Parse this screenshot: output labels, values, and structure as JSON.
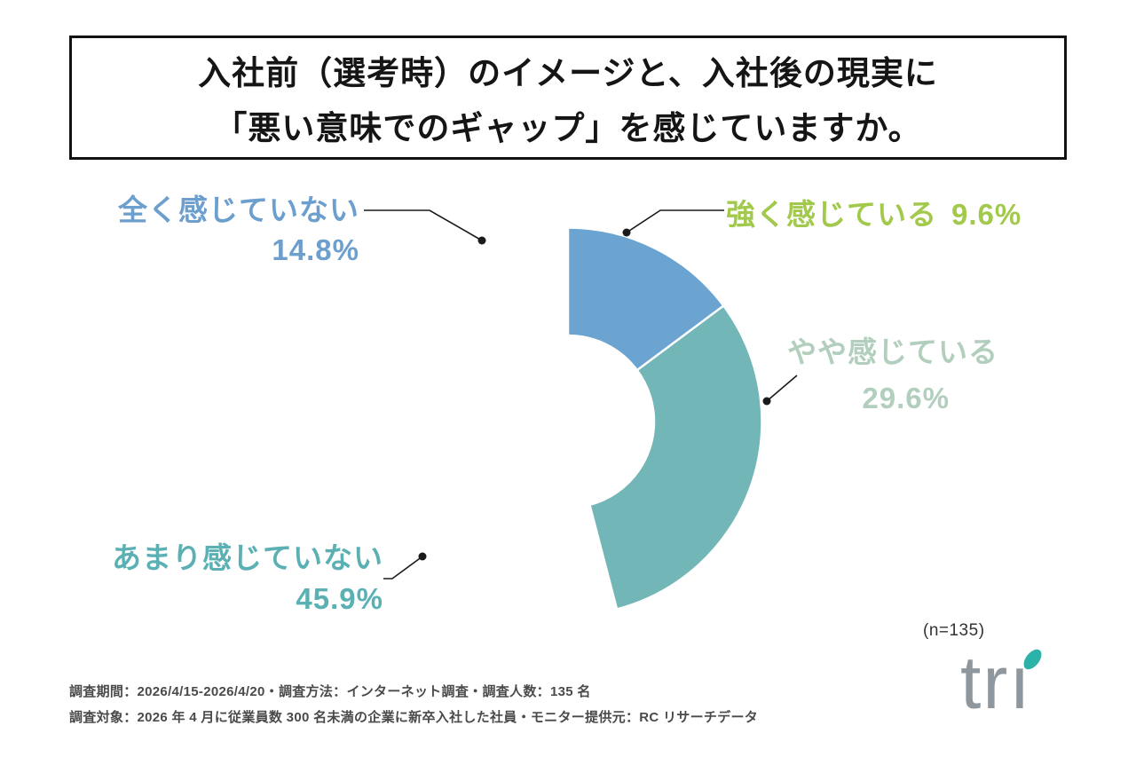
{
  "title": {
    "line1": "入社前（選考時）のイメージと、入社後の現実に",
    "line2": "「悪い意味でのギャップ」を感じていますか。"
  },
  "chart_data": {
    "type": "pie",
    "donut": true,
    "title": "入社前（選考時）のイメージと、入社後の現実に「悪い意味でのギャップ」を感じていますか。",
    "start_angle_deg": 0,
    "direction": "clockwise",
    "legend_position": "callout-labels",
    "sample_label": "(n=135)",
    "sample_n": 135,
    "segments": [
      {
        "label": "強く感じている",
        "value": 9.6,
        "pct_label": "9.6%",
        "color": "#a6cb58",
        "text_color": "#a2c94c"
      },
      {
        "label": "やや感じている",
        "value": 29.6,
        "pct_label": "29.6%",
        "color": "#bad3c4",
        "text_color": "#b2cebd"
      },
      {
        "label": "あまり感じていない",
        "value": 45.9,
        "pct_label": "45.9%",
        "color": "#72b6b8",
        "text_color": "#5bb0b3"
      },
      {
        "label": "全く感じていない",
        "value": 14.8,
        "pct_label": "14.8%",
        "color": "#6ba4d0",
        "text_color": "#6c9fcd"
      }
    ]
  },
  "footer": {
    "line1": "調査期間：2026/4/15-2026/4/20・調査方法：インターネット調査・調査人数：135 名",
    "line2": "調査対象：2026 年 4 月に従業員数 300 名未満の企業に新卒入社した社員・モニター提供元：RC リサーチデータ"
  },
  "logo": {
    "text": "tri",
    "dot_color": "#2cb3a9"
  }
}
